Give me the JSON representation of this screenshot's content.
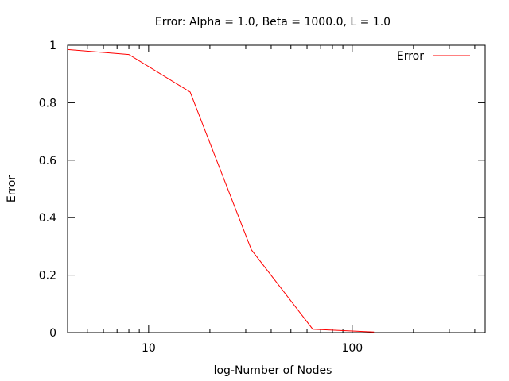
{
  "chart_data": {
    "type": "line",
    "title": "Error: Alpha = 1.0, Beta = 1000.0, L = 1.0",
    "xlabel": "log-Number of Nodes",
    "ylabel": "Error",
    "x_scale": "log",
    "xlim": [
      4,
      450
    ],
    "ylim": [
      0,
      1
    ],
    "x_major_ticks": [
      10,
      100
    ],
    "x_tick_labels": [
      "10",
      "100"
    ],
    "y_ticks": [
      0,
      0.2,
      0.4,
      0.6,
      0.8,
      1
    ],
    "y_tick_labels": [
      "0",
      "0.2",
      "0.4",
      "0.6",
      "0.8",
      "1"
    ],
    "grid": false,
    "legend_position": "top-right",
    "series": [
      {
        "name": "Error",
        "color": "#ff0000",
        "x": [
          4,
          8,
          16,
          32,
          64,
          128
        ],
        "y": [
          0.985,
          0.968,
          0.837,
          0.288,
          0.012,
          0.002
        ]
      }
    ]
  }
}
